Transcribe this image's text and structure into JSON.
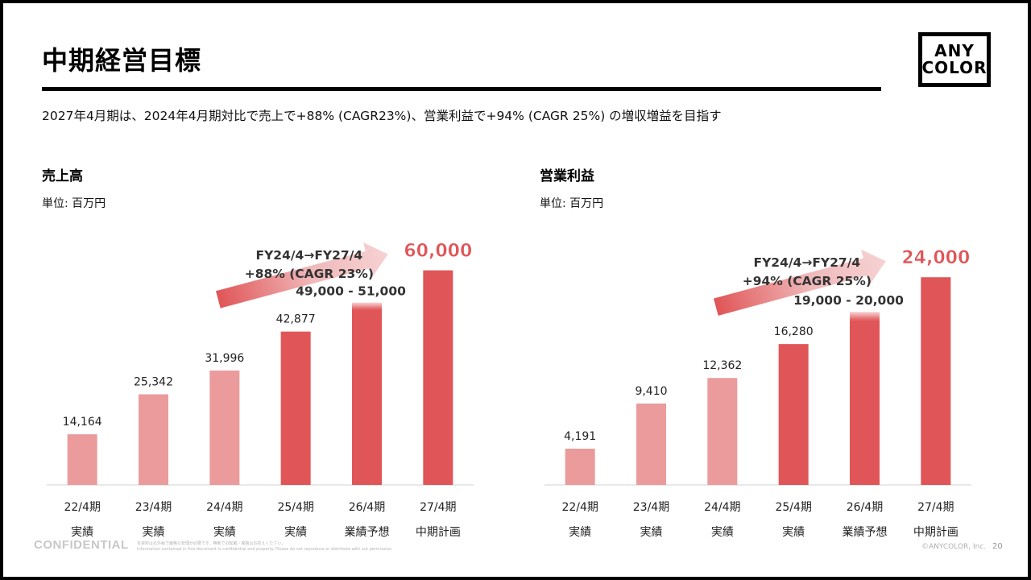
{
  "header": {
    "title": "中期経営目標",
    "subtitle": "2027年4月期は、2024年4月期対比で売上で+88% (CAGR23%)、営業利益で+94% (CAGR 25%) の増収増益を目指す",
    "logo_line1": "ANY",
    "logo_line2": "COLOR"
  },
  "footer": {
    "confidential": "CONFIDENTIAL",
    "fine_print_1": "本資料は社外秘で厳格な管理が必要です。無断での転載・複製はお控えください。",
    "fine_print_2": "Information contained in this document is confidential and property. Please do not reproduce or distribute with out permission.",
    "copyright": "©ANYCOLOR, Inc.",
    "page_number": "20"
  },
  "colors": {
    "light_bar": "#eb9b9c",
    "dark_bar": "#e05557",
    "highlight": "#e05557",
    "axis": "#d0d0d0"
  },
  "chart_data": [
    {
      "type": "bar",
      "title": "売上高",
      "unit": "単位: 百万円",
      "categories": [
        "22/4期",
        "23/4期",
        "24/4期",
        "25/4期",
        "26/4期",
        "27/4期"
      ],
      "category_sublabels": [
        "実績",
        "実績",
        "実績",
        "実績",
        "業績予想",
        "中期計画"
      ],
      "values": [
        14164,
        25342,
        31996,
        42877,
        51000,
        60000
      ],
      "value_labels": [
        "14,164",
        "25,342",
        "31,996",
        "42,877",
        "49,000 - 51,000",
        "60,000"
      ],
      "range_low_26": 49000,
      "bar_shades": [
        "light",
        "light",
        "light",
        "dark",
        "dark",
        "dark"
      ],
      "ylim": [
        0,
        75000
      ],
      "growth_arrow_line1": "FY24/4→FY27/4",
      "growth_arrow_line2": "+88% (CAGR 23%)"
    },
    {
      "type": "bar",
      "title": "営業利益",
      "unit": "単位: 百万円",
      "categories": [
        "22/4期",
        "23/4期",
        "24/4期",
        "25/4期",
        "26/4期",
        "27/4期"
      ],
      "category_sublabels": [
        "実績",
        "実績",
        "実績",
        "実績",
        "業績予想",
        "中期計画"
      ],
      "values": [
        4191,
        9410,
        12362,
        16280,
        20000,
        24000
      ],
      "value_labels": [
        "4,191",
        "9,410",
        "12,362",
        "16,280",
        "19,000 - 20,000",
        "24,000"
      ],
      "range_low_26": 19000,
      "bar_shades": [
        "light",
        "light",
        "light",
        "dark",
        "dark",
        "dark"
      ],
      "ylim": [
        0,
        31000
      ],
      "growth_arrow_line1": "FY24/4→FY27/4",
      "growth_arrow_line2": "+94% (CAGR 25%)"
    }
  ]
}
